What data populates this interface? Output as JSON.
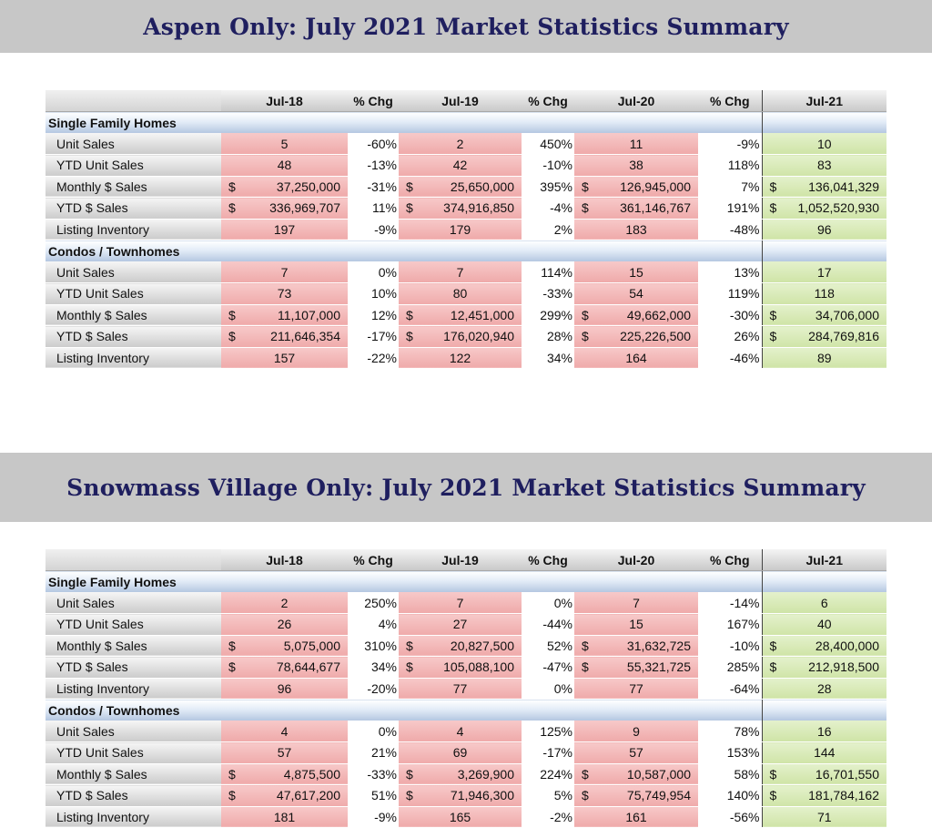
{
  "tables": [
    {
      "title": "Aspen Only:  July 2021 Market Statistics Summary",
      "headers": [
        "",
        "Jul-18",
        "% Chg",
        "Jul-19",
        "% Chg",
        "Jul-20",
        "% Chg",
        "Jul-21"
      ],
      "sections": [
        {
          "name": "Single Family Homes",
          "rows": [
            {
              "label": "Unit Sales",
              "currency": false,
              "v18": "5",
              "c1": "-60%",
              "v19": "2",
              "c2": "450%",
              "v20": "11",
              "c3": "-9%",
              "v21": "10"
            },
            {
              "label": "YTD Unit Sales",
              "currency": false,
              "v18": "48",
              "c1": "-13%",
              "v19": "42",
              "c2": "-10%",
              "v20": "38",
              "c3": "118%",
              "v21": "83"
            },
            {
              "label": "Monthly $ Sales",
              "currency": true,
              "v18": "37,250,000",
              "c1": "-31%",
              "v19": "25,650,000",
              "c2": "395%",
              "v20": "126,945,000",
              "c3": "7%",
              "v21": "136,041,329"
            },
            {
              "label": "YTD $ Sales",
              "currency": true,
              "v18": "336,969,707",
              "c1": "11%",
              "v19": "374,916,850",
              "c2": "-4%",
              "v20": "361,146,767",
              "c3": "191%",
              "v21": "1,052,520,930"
            },
            {
              "label": "Listing Inventory",
              "currency": false,
              "v18": "197",
              "c1": "-9%",
              "v19": "179",
              "c2": "2%",
              "v20": "183",
              "c3": "-48%",
              "v21": "96"
            }
          ]
        },
        {
          "name": "Condos / Townhomes",
          "rows": [
            {
              "label": "Unit Sales",
              "currency": false,
              "v18": "7",
              "c1": "0%",
              "v19": "7",
              "c2": "114%",
              "v20": "15",
              "c3": "13%",
              "v21": "17"
            },
            {
              "label": "YTD Unit Sales",
              "currency": false,
              "v18": "73",
              "c1": "10%",
              "v19": "80",
              "c2": "-33%",
              "v20": "54",
              "c3": "119%",
              "v21": "118"
            },
            {
              "label": "Monthly $ Sales",
              "currency": true,
              "v18": "11,107,000",
              "c1": "12%",
              "v19": "12,451,000",
              "c2": "299%",
              "v20": "49,662,000",
              "c3": "-30%",
              "v21": "34,706,000"
            },
            {
              "label": "YTD $ Sales",
              "currency": true,
              "v18": "211,646,354",
              "c1": "-17%",
              "v19": "176,020,940",
              "c2": "28%",
              "v20": "225,226,500",
              "c3": "26%",
              "v21": "284,769,816"
            },
            {
              "label": "Listing Inventory",
              "currency": false,
              "v18": "157",
              "c1": "-22%",
              "v19": "122",
              "c2": "34%",
              "v20": "164",
              "c3": "-46%",
              "v21": "89"
            }
          ]
        }
      ]
    },
    {
      "title": "Snowmass Village Only:  July 2021 Market Statistics Summary",
      "headers": [
        "",
        "Jul-18",
        "% Chg",
        "Jul-19",
        "% Chg",
        "Jul-20",
        "% Chg",
        "Jul-21"
      ],
      "sections": [
        {
          "name": "Single Family Homes",
          "rows": [
            {
              "label": "Unit Sales",
              "currency": false,
              "v18": "2",
              "c1": "250%",
              "v19": "7",
              "c2": "0%",
              "v20": "7",
              "c3": "-14%",
              "v21": "6"
            },
            {
              "label": "YTD Unit Sales",
              "currency": false,
              "v18": "26",
              "c1": "4%",
              "v19": "27",
              "c2": "-44%",
              "v20": "15",
              "c3": "167%",
              "v21": "40"
            },
            {
              "label": "Monthly $ Sales",
              "currency": true,
              "v18": "5,075,000",
              "c1": "310%",
              "v19": "20,827,500",
              "c2": "52%",
              "v20": "31,632,725",
              "c3": "-10%",
              "v21": "28,400,000"
            },
            {
              "label": "YTD $ Sales",
              "currency": true,
              "v18": "78,644,677",
              "c1": "34%",
              "v19": "105,088,100",
              "c2": "-47%",
              "v20": "55,321,725",
              "c3": "285%",
              "v21": "212,918,500"
            },
            {
              "label": "Listing Inventory",
              "currency": false,
              "v18": "96",
              "c1": "-20%",
              "v19": "77",
              "c2": "0%",
              "v20": "77",
              "c3": "-64%",
              "v21": "28"
            }
          ]
        },
        {
          "name": "Condos / Townhomes",
          "rows": [
            {
              "label": "Unit Sales",
              "currency": false,
              "v18": "4",
              "c1": "0%",
              "v19": "4",
              "c2": "125%",
              "v20": "9",
              "c3": "78%",
              "v21": "16"
            },
            {
              "label": "YTD Unit Sales",
              "currency": false,
              "v18": "57",
              "c1": "21%",
              "v19": "69",
              "c2": "-17%",
              "v20": "57",
              "c3": "153%",
              "v21": "144"
            },
            {
              "label": "Monthly $ Sales",
              "currency": true,
              "v18": "4,875,500",
              "c1": "-33%",
              "v19": "3,269,900",
              "c2": "224%",
              "v20": "10,587,000",
              "c3": "58%",
              "v21": "16,701,550"
            },
            {
              "label": "YTD $ Sales",
              "currency": true,
              "v18": "47,617,200",
              "c1": "51%",
              "v19": "71,946,300",
              "c2": "5%",
              "v20": "75,749,954",
              "c3": "140%",
              "v21": "181,784,162"
            },
            {
              "label": "Listing Inventory",
              "currency": false,
              "v18": "181",
              "c1": "-9%",
              "v19": "165",
              "c2": "-2%",
              "v20": "161",
              "c3": "-56%",
              "v21": "71"
            }
          ]
        }
      ]
    }
  ],
  "currency_symbol": "$",
  "colors": {
    "banner": "#c7c7c7",
    "title": "#1f1f5f",
    "past_value_cell": "#efaaaa",
    "current_value_cell": "#cfe4a7",
    "section_header": "#b3c6e0"
  }
}
